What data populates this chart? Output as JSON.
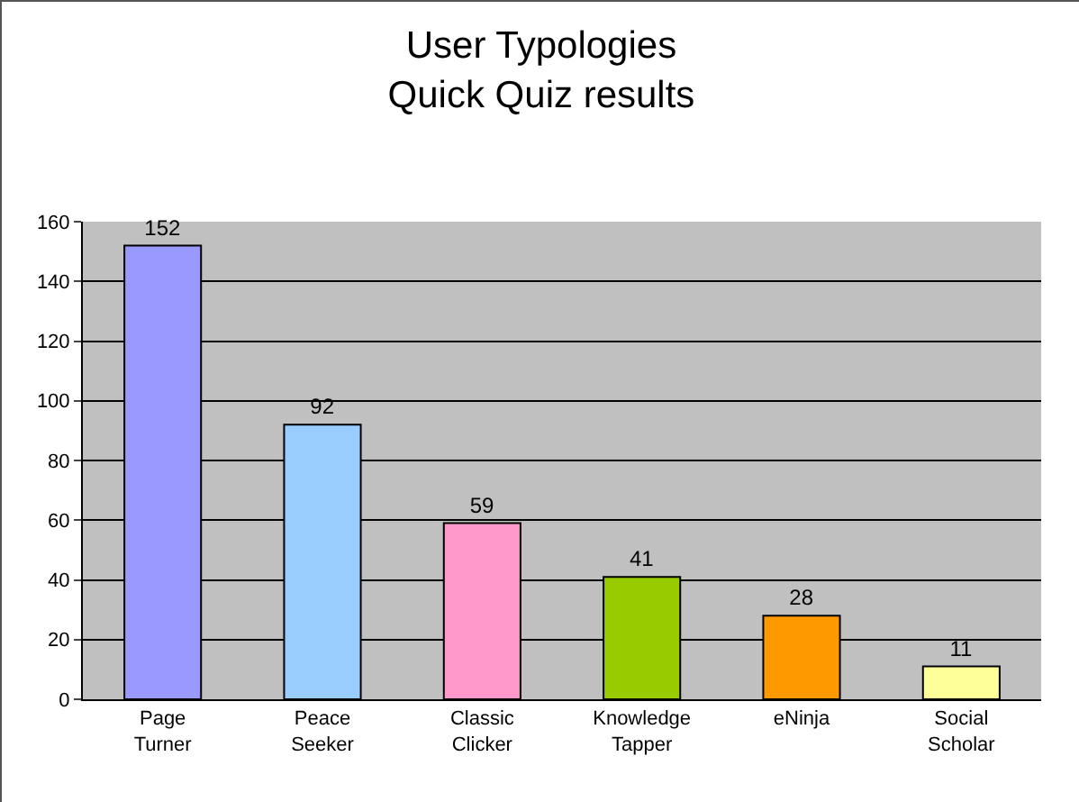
{
  "chart_data": {
    "type": "bar",
    "title": "User Typologies\nQuick Quiz results",
    "categories": [
      "Page Turner",
      "Peace Seeker",
      "Classic Clicker",
      "Knowledge Tapper",
      "eNinja",
      "Social Scholar"
    ],
    "values": [
      152,
      92,
      59,
      41,
      28,
      11
    ],
    "colors": [
      "#9999ff",
      "#99ccff",
      "#ff99cc",
      "#99cc00",
      "#ff9900",
      "#ffff99"
    ],
    "ylim": [
      0,
      160
    ],
    "yticks": [
      0,
      20,
      40,
      60,
      80,
      100,
      120,
      140,
      160
    ],
    "grid": "y",
    "data_labels": true
  }
}
